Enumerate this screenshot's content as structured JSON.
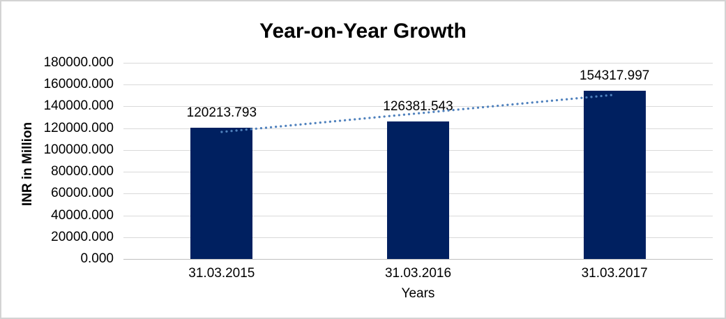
{
  "colors": {
    "bar": "#002060",
    "trendline": "#4f81bd",
    "gridline": "#d9d9d9",
    "axis_line": "#bfbfbf",
    "text": "#000000",
    "frame_border": "#d3d3d3",
    "background": "#ffffff"
  },
  "chart_data": {
    "type": "bar",
    "title": "Year-on-Year Growth",
    "xlabel": "Years",
    "ylabel": "INR in Million",
    "categories": [
      "31.03.2015",
      "31.03.2016",
      "31.03.2017"
    ],
    "values": [
      120213.793,
      126381.543,
      154317.997
    ],
    "data_labels": [
      "120213.793",
      "126381.543",
      "154317.997"
    ],
    "ylim": [
      0,
      180000
    ],
    "ytick_step": 20000,
    "ytick_decimals": 3,
    "grid": true,
    "legend": false,
    "trendline": {
      "type": "linear",
      "style": "dotted"
    }
  }
}
